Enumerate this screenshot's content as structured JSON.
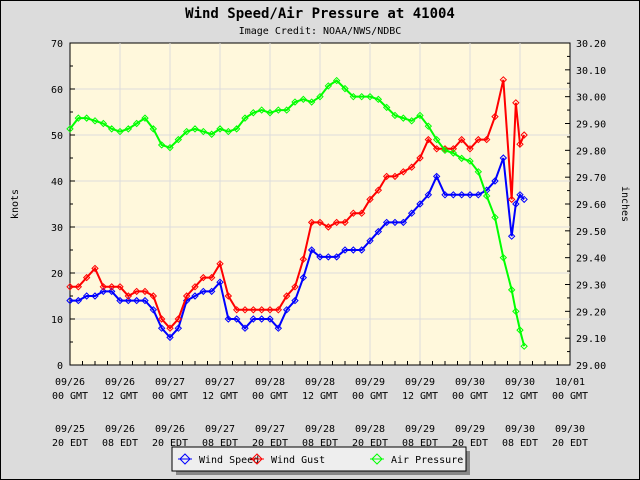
{
  "chart_data": {
    "type": "line",
    "title": "Wind Speed/Air Pressure at 41004",
    "subtitle": "Image Credit: NOAA/NWS/NDBC",
    "ylabel": "knots",
    "y2label": "inches",
    "ylim": [
      0,
      70
    ],
    "y2lim": [
      29.0,
      30.2
    ],
    "yticks": [
      "0",
      "10",
      "20",
      "30",
      "40",
      "50",
      "60",
      "70"
    ],
    "y2ticks": [
      "29.00",
      "29.10",
      "29.20",
      "29.30",
      "29.40",
      "29.50",
      "29.60",
      "29.70",
      "29.80",
      "29.90",
      "30.00",
      "30.10",
      "30.20"
    ],
    "xticks_gmt": [
      [
        "09/26",
        "00 GMT"
      ],
      [
        "09/26",
        "12 GMT"
      ],
      [
        "09/27",
        "00 GMT"
      ],
      [
        "09/27",
        "12 GMT"
      ],
      [
        "09/28",
        "00 GMT"
      ],
      [
        "09/28",
        "12 GMT"
      ],
      [
        "09/29",
        "00 GMT"
      ],
      [
        "09/29",
        "12 GMT"
      ],
      [
        "09/30",
        "00 GMT"
      ],
      [
        "09/30",
        "12 GMT"
      ],
      [
        "10/01",
        "00 GMT"
      ]
    ],
    "xticks_edt": [
      [
        "09/25",
        "20 EDT"
      ],
      [
        "09/26",
        "08 EDT"
      ],
      [
        "09/26",
        "20 EDT"
      ],
      [
        "09/27",
        "08 EDT"
      ],
      [
        "09/27",
        "20 EDT"
      ],
      [
        "09/28",
        "08 EDT"
      ],
      [
        "09/28",
        "20 EDT"
      ],
      [
        "09/29",
        "08 EDT"
      ],
      [
        "09/29",
        "20 EDT"
      ],
      [
        "09/30",
        "08 EDT"
      ],
      [
        "09/30",
        "20 EDT"
      ]
    ],
    "xlim": [
      "09/26 00 GMT",
      "10/01 00 GMT"
    ],
    "grid": true,
    "legend_position": "bottom",
    "x": [
      "09/26 00",
      "09/26 02",
      "09/26 04",
      "09/26 06",
      "09/26 08",
      "09/26 10",
      "09/26 12",
      "09/26 14",
      "09/26 16",
      "09/26 18",
      "09/26 20",
      "09/26 22",
      "09/27 00",
      "09/27 02",
      "09/27 04",
      "09/27 06",
      "09/27 08",
      "09/27 10",
      "09/27 12",
      "09/27 14",
      "09/27 16",
      "09/27 18",
      "09/27 20",
      "09/27 22",
      "09/28 00",
      "09/28 02",
      "09/28 04",
      "09/28 06",
      "09/28 08",
      "09/28 10",
      "09/28 12",
      "09/28 14",
      "09/28 16",
      "09/28 18",
      "09/28 20",
      "09/28 22",
      "09/29 00",
      "09/29 02",
      "09/29 04",
      "09/29 06",
      "09/29 08",
      "09/29 10",
      "09/29 12",
      "09/29 14",
      "09/29 16",
      "09/29 18",
      "09/29 20",
      "09/29 22",
      "09/30 00",
      "09/30 02",
      "09/30 04",
      "09/30 06",
      "09/30 08",
      "09/30 10",
      "09/30 11",
      "09/30 12",
      "09/30 13"
    ],
    "series": [
      {
        "name": "Wind Speed",
        "axis": "left",
        "color": "#0000ff",
        "values": [
          14,
          14,
          15,
          15,
          16,
          16,
          14,
          14,
          14,
          14,
          12,
          8,
          6,
          8,
          14,
          15,
          16,
          16,
          18,
          10,
          10,
          8,
          10,
          10,
          10,
          8,
          12,
          14,
          19,
          25,
          23.5,
          23.5,
          23.5,
          25,
          25,
          25,
          27,
          29,
          31,
          31,
          31,
          33,
          35,
          37,
          41,
          37,
          37,
          37,
          37,
          37,
          38,
          40,
          45,
          28,
          35,
          37,
          36
        ]
      },
      {
        "name": "Wind Gust",
        "axis": "left",
        "color": "#ff0000",
        "values": [
          17,
          17,
          19,
          21,
          17,
          17,
          17,
          15,
          16,
          16,
          15,
          10,
          8,
          10,
          15,
          17,
          19,
          19,
          22,
          15,
          12,
          12,
          12,
          12,
          12,
          12,
          15,
          17,
          23,
          31,
          31,
          30,
          31,
          31,
          33,
          33,
          36,
          38,
          41,
          41,
          42,
          43,
          45,
          49,
          47,
          47,
          47,
          49,
          47,
          49,
          49,
          54,
          62,
          36,
          57,
          48,
          50
        ]
      },
      {
        "name": "Air Pressure",
        "axis": "right",
        "color": "#00ff00",
        "values": [
          29.88,
          29.92,
          29.92,
          29.91,
          29.9,
          29.88,
          29.87,
          29.88,
          29.9,
          29.92,
          29.88,
          29.82,
          29.81,
          29.84,
          29.87,
          29.88,
          29.87,
          29.86,
          29.88,
          29.87,
          29.88,
          29.92,
          29.94,
          29.95,
          29.94,
          29.95,
          29.95,
          29.98,
          29.99,
          29.98,
          30.0,
          30.04,
          30.06,
          30.03,
          30.0,
          30.0,
          30.0,
          29.99,
          29.96,
          29.93,
          29.92,
          29.91,
          29.93,
          29.89,
          29.84,
          29.8,
          29.79,
          29.77,
          29.76,
          29.72,
          29.63,
          29.55,
          29.4,
          29.28,
          29.2,
          29.13,
          29.07
        ]
      }
    ]
  }
}
